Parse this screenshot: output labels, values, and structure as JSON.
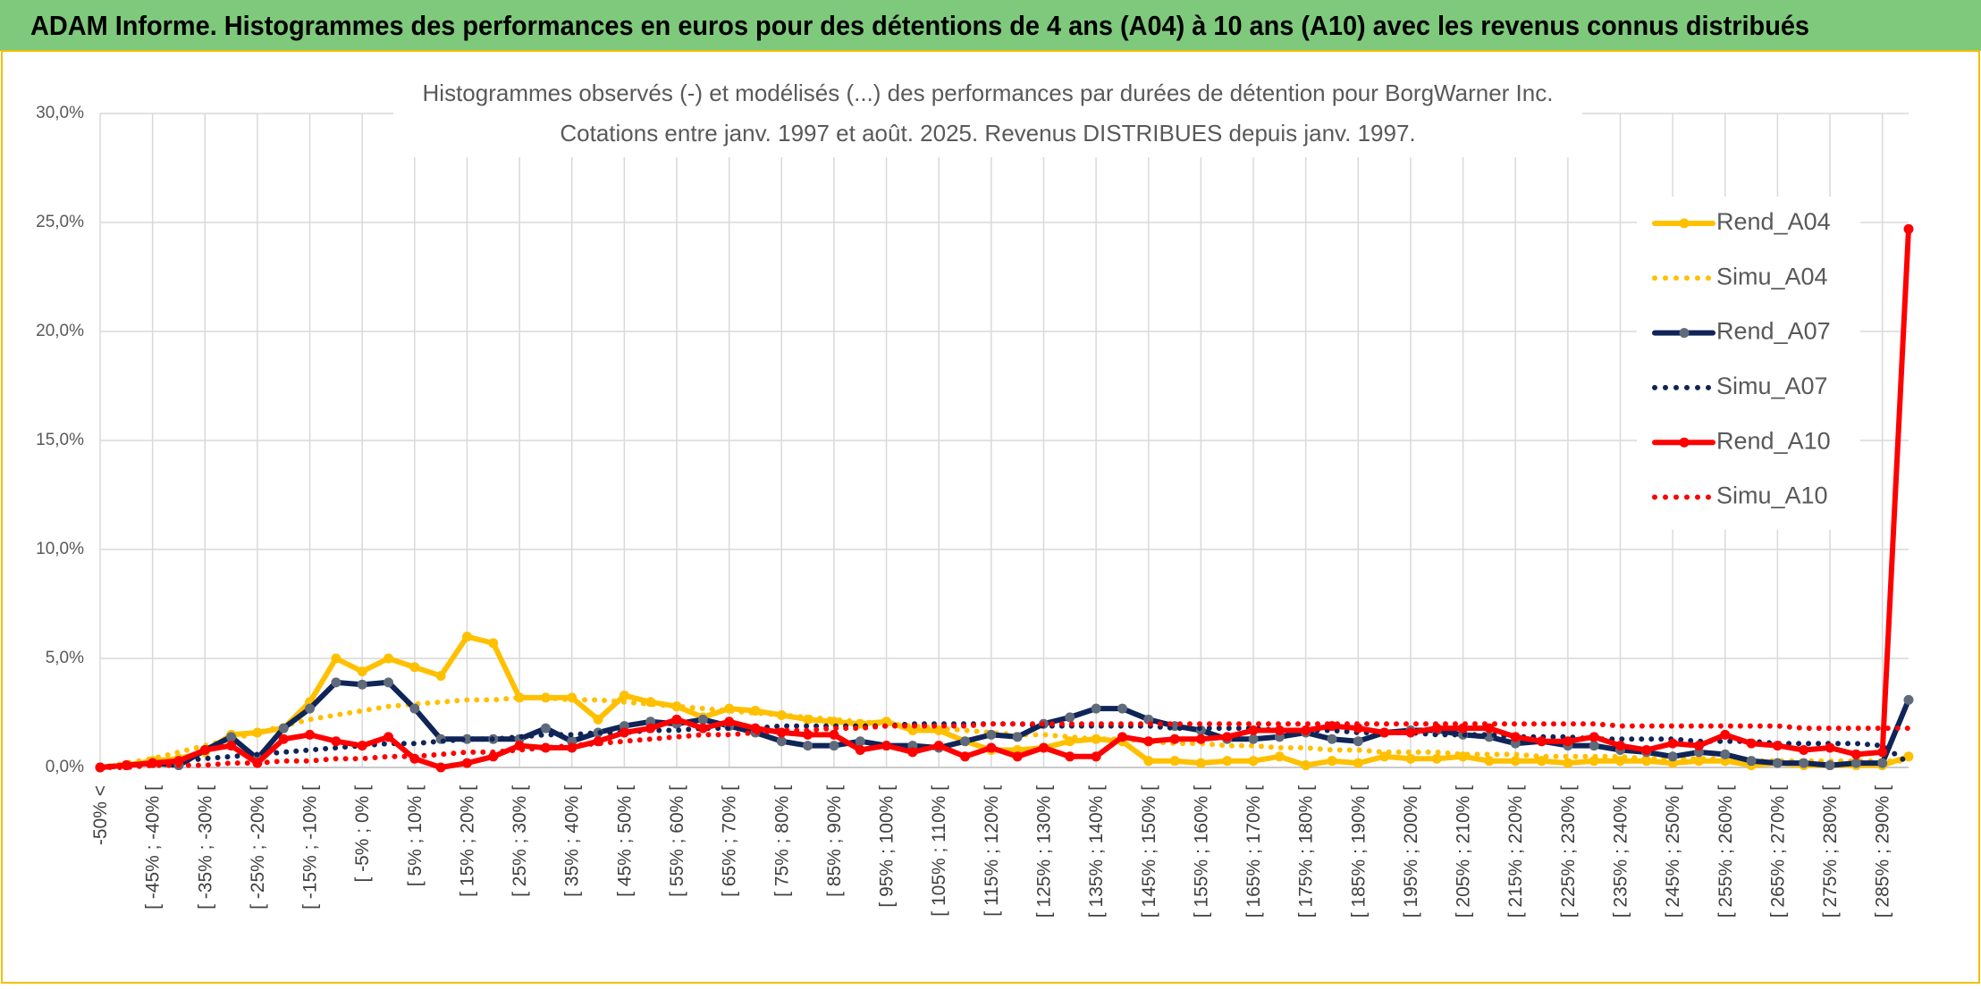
{
  "header": {
    "title": "ADAM Informe. Histogrammes des performances en euros pour des détentions de 4 ans (A04) à 10 ans (A10) avec les revenus connus distribués"
  },
  "chart_data": {
    "type": "line",
    "title": "Histogrammes observés (-) et modélisés (...) des performances par durées de détention pour BorgWarner Inc.",
    "subtitle": "Cotations entre janv. 1997 et août. 2025. Revenus DISTRIBUES depuis janv. 1997.",
    "categories": [
      "-50% <",
      null,
      "[ -45% ; -40% [",
      null,
      "[ -35% ; -30% [",
      null,
      "[ -25% ; -20% [",
      null,
      "[ -15% ; -10% [",
      null,
      "[ -5% ; 0% [",
      null,
      "[ 5% ; 10% [",
      null,
      "[ 15% ; 20% [",
      null,
      "[ 25% ; 30% [",
      null,
      "[ 35% ; 40% [",
      null,
      "[ 45% ; 50% [",
      null,
      "[ 55% ; 60% [",
      null,
      "[ 65% ; 70% [",
      null,
      "[ 75% ; 80% [",
      null,
      "[ 85% ; 90% [",
      null,
      "[ 95% ; 100% [",
      null,
      "[ 105% ; 110% [",
      null,
      "[ 115% ; 120% [",
      null,
      "[ 125% ; 130% [",
      null,
      "[ 135% ; 140% [",
      null,
      "[ 145% ; 150% [",
      null,
      "[ 155% ; 160% [",
      null,
      "[ 165% ; 170% [",
      null,
      "[ 175% ; 180% [",
      null,
      "[ 185% ; 190% [",
      null,
      "[ 195% ; 200% [",
      null,
      "[ 205% ; 210% [",
      null,
      "[ 215% ; 220% [",
      null,
      "[ 225% ; 230% [",
      null,
      "[ 235% ; 240% [",
      null,
      "[ 245% ; 250% [",
      null,
      "[ 255% ; 260% [",
      null,
      "[ 265% ; 270% [",
      null,
      "[ 275% ; 280% [",
      null,
      "[ 285% ; 290% [",
      null
    ],
    "series": [
      {
        "name": "Rend_A04",
        "color": "#ffc000",
        "style": "solid",
        "values": [
          0,
          0.1,
          0.3,
          0.4,
          0.7,
          1.5,
          1.6,
          1.8,
          3.0,
          5.0,
          4.4,
          5.0,
          4.6,
          4.2,
          6.0,
          5.7,
          3.2,
          3.2,
          3.2,
          2.2,
          3.3,
          3.0,
          2.8,
          2.3,
          2.7,
          2.6,
          2.4,
          2.2,
          2.1,
          2.0,
          2.1,
          1.7,
          1.7,
          1.2,
          0.8,
          0.8,
          0.9,
          1.2,
          1.3,
          1.2,
          0.3,
          0.3,
          0.2,
          0.3,
          0.3,
          0.5,
          0.1,
          0.3,
          0.2,
          0.5,
          0.4,
          0.4,
          0.5,
          0.3,
          0.3,
          0.3,
          0.2,
          0.3,
          0.3,
          0.3,
          0.2,
          0.3,
          0.3,
          0.1,
          0.2,
          0.1,
          0.1,
          0.1,
          0.1,
          0.5
        ]
      },
      {
        "name": "Simu_A04",
        "color": "#ffc000",
        "style": "dotted",
        "values": [
          0,
          0.2,
          0.4,
          0.7,
          1.0,
          1.3,
          1.6,
          1.9,
          2.2,
          2.4,
          2.6,
          2.8,
          2.9,
          3.0,
          3.1,
          3.1,
          3.2,
          3.2,
          3.1,
          3.1,
          3.0,
          2.9,
          2.8,
          2.7,
          2.6,
          2.5,
          2.4,
          2.3,
          2.2,
          2.1,
          2.0,
          1.9,
          1.8,
          1.7,
          1.6,
          1.5,
          1.5,
          1.4,
          1.3,
          1.3,
          1.2,
          1.1,
          1.1,
          1.0,
          1.0,
          0.9,
          0.9,
          0.8,
          0.8,
          0.7,
          0.7,
          0.7,
          0.6,
          0.6,
          0.6,
          0.5,
          0.5,
          0.5,
          0.5,
          0.4,
          0.4,
          0.4,
          0.4,
          0.3,
          0.3,
          0.3,
          0.3,
          0.3,
          0.3,
          0.3
        ]
      },
      {
        "name": "Rend_A07",
        "color": "#0f2457",
        "marker_color": "#5f6a7a",
        "style": "solid",
        "values": [
          0,
          0.1,
          0.2,
          0.1,
          0.8,
          1.4,
          0.4,
          1.8,
          2.7,
          3.9,
          3.8,
          3.9,
          2.7,
          1.3,
          1.3,
          1.3,
          1.3,
          1.8,
          1.2,
          1.6,
          1.9,
          2.1,
          2.0,
          2.2,
          1.9,
          1.6,
          1.2,
          1.0,
          1.0,
          1.2,
          1.0,
          1.0,
          0.9,
          1.2,
          1.5,
          1.4,
          2.0,
          2.3,
          2.7,
          2.7,
          2.2,
          1.9,
          1.7,
          1.3,
          1.3,
          1.4,
          1.6,
          1.3,
          1.2,
          1.6,
          1.7,
          1.7,
          1.5,
          1.4,
          1.1,
          1.2,
          1.0,
          1.0,
          0.8,
          0.7,
          0.5,
          0.7,
          0.6,
          0.3,
          0.2,
          0.2,
          0.1,
          0.2,
          0.2,
          3.1
        ]
      },
      {
        "name": "Simu_A07",
        "color": "#0f2457",
        "style": "dotted",
        "values": [
          0,
          0.1,
          0.2,
          0.3,
          0.4,
          0.5,
          0.6,
          0.7,
          0.8,
          0.9,
          1.0,
          1.1,
          1.1,
          1.2,
          1.3,
          1.3,
          1.4,
          1.5,
          1.5,
          1.6,
          1.6,
          1.7,
          1.7,
          1.8,
          1.8,
          1.8,
          1.9,
          1.9,
          1.9,
          1.9,
          1.9,
          2.0,
          2.0,
          2.0,
          2.0,
          2.0,
          1.9,
          1.9,
          1.9,
          1.9,
          1.9,
          1.8,
          1.8,
          1.8,
          1.8,
          1.7,
          1.7,
          1.7,
          1.6,
          1.6,
          1.6,
          1.5,
          1.5,
          1.5,
          1.4,
          1.4,
          1.4,
          1.3,
          1.3,
          1.3,
          1.3,
          1.2,
          1.2,
          1.2,
          1.1,
          1.1,
          1.1,
          1.1,
          1.0,
          0.2
        ]
      },
      {
        "name": "Rend_A10",
        "color": "#ff0000",
        "style": "solid",
        "values": [
          0,
          0.1,
          0.2,
          0.3,
          0.8,
          1.0,
          0.2,
          1.3,
          1.5,
          1.2,
          1.0,
          1.4,
          0.4,
          0,
          0.2,
          0.5,
          1.0,
          0.9,
          0.9,
          1.2,
          1.6,
          1.8,
          2.2,
          1.8,
          2.1,
          1.8,
          1.6,
          1.5,
          1.5,
          0.8,
          1.0,
          0.7,
          1.0,
          0.5,
          0.9,
          0.5,
          0.9,
          0.5,
          0.5,
          1.4,
          1.2,
          1.3,
          1.3,
          1.4,
          1.7,
          1.7,
          1.7,
          1.9,
          1.8,
          1.6,
          1.6,
          1.8,
          1.8,
          1.8,
          1.4,
          1.2,
          1.2,
          1.4,
          1.0,
          0.8,
          1.1,
          1.0,
          1.5,
          1.1,
          1.0,
          0.8,
          0.9,
          0.6,
          0.7,
          24.7
        ]
      },
      {
        "name": "Simu_A10",
        "color": "#ff0000",
        "style": "dotted",
        "values": [
          0,
          0,
          0.1,
          0.1,
          0.1,
          0.2,
          0.2,
          0.3,
          0.3,
          0.4,
          0.4,
          0.5,
          0.5,
          0.6,
          0.7,
          0.7,
          0.8,
          0.9,
          1.0,
          1.1,
          1.2,
          1.3,
          1.4,
          1.5,
          1.5,
          1.6,
          1.7,
          1.7,
          1.8,
          1.8,
          1.9,
          1.9,
          1.9,
          1.9,
          2.0,
          2.0,
          2.0,
          2.0,
          2.0,
          2.0,
          2.0,
          2.0,
          2.0,
          2.0,
          2.0,
          2.0,
          2.0,
          2.0,
          2.0,
          2.0,
          2.0,
          2.0,
          2.0,
          2.0,
          2.0,
          2.0,
          2.0,
          2.0,
          1.9,
          1.9,
          1.9,
          1.9,
          1.9,
          1.9,
          1.9,
          1.8,
          1.8,
          1.8,
          1.8,
          1.8
        ]
      }
    ],
    "ylim": [
      0,
      30
    ],
    "yticks": [
      {
        "value": 0,
        "label": "0,0%"
      },
      {
        "value": 5,
        "label": "5,0%"
      },
      {
        "value": 10,
        "label": "10,0%"
      },
      {
        "value": 15,
        "label": "15,0%"
      },
      {
        "value": 20,
        "label": "20,0%"
      },
      {
        "value": 25,
        "label": "25,0%"
      },
      {
        "value": 30,
        "label": "30,0%"
      }
    ],
    "grid": true,
    "legend": "right",
    "header_color": "#7ec97b"
  }
}
